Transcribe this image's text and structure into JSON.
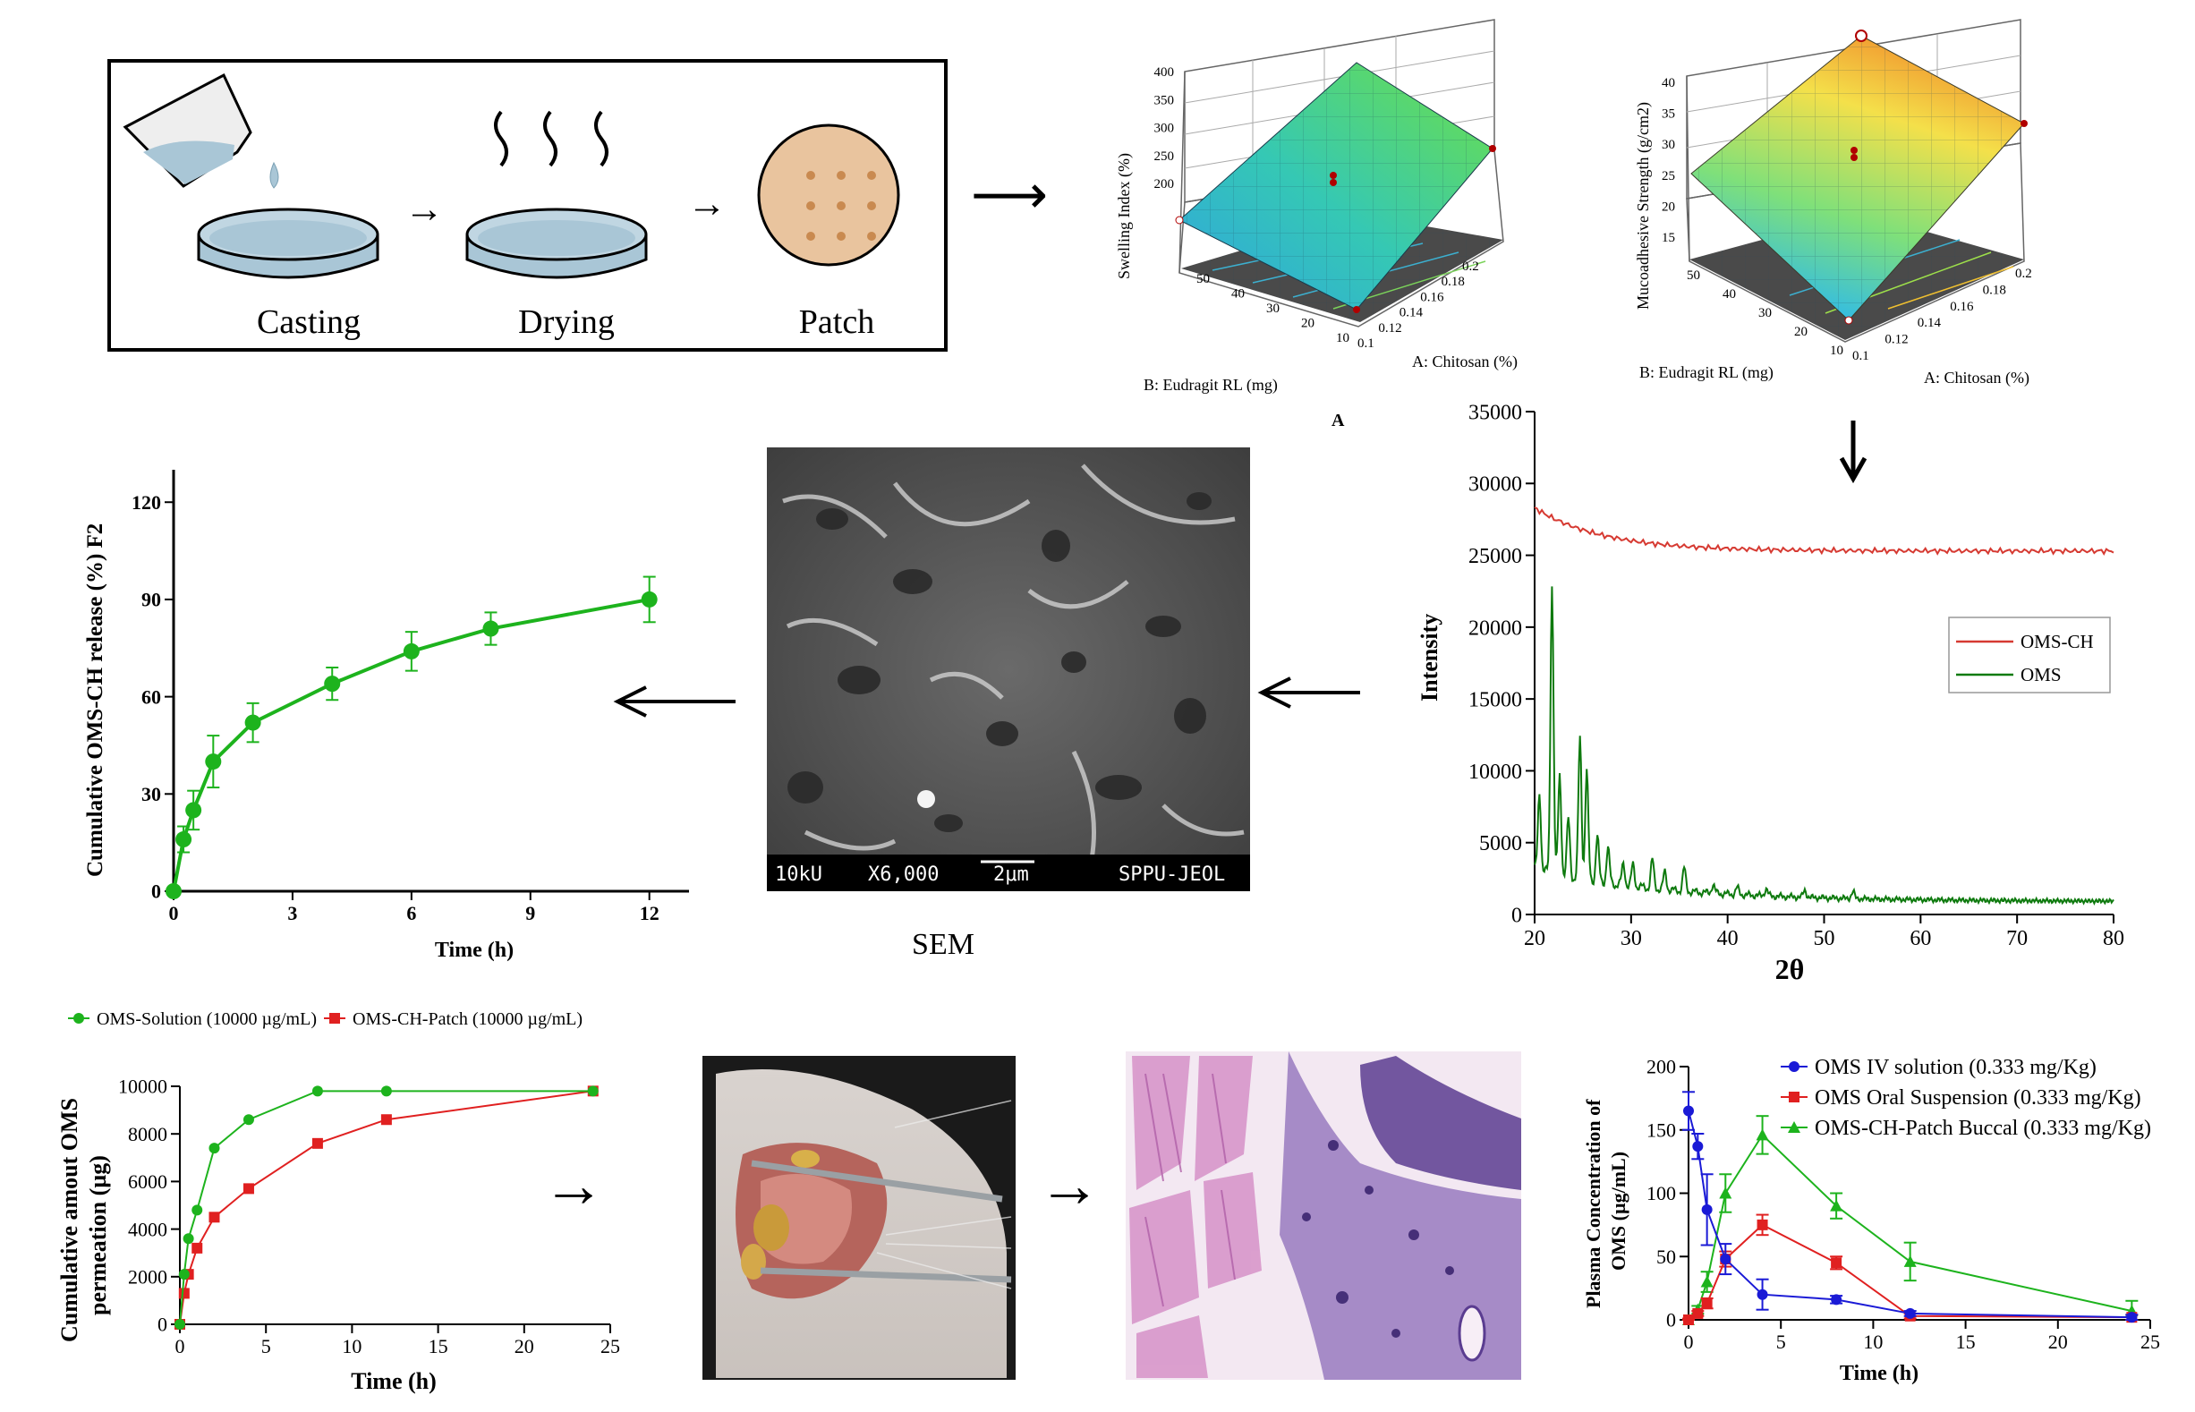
{
  "process": {
    "steps": [
      "Casting",
      "Drying",
      "Patch"
    ]
  },
  "surface_swelling": {
    "zlabel": "Swelling Index (%)",
    "zticks": [
      "400",
      "350",
      "300",
      "250",
      "200"
    ],
    "xlabel": "A: Chitosan (%)",
    "xticks": [
      "0.1",
      "0.12",
      "0.14",
      "0.16",
      "0.18",
      "0.2"
    ],
    "ylabel": "B: Eudragit RL (mg)",
    "yticks": [
      "10",
      "20",
      "30",
      "40",
      "50"
    ],
    "panel_letter": "A"
  },
  "surface_mucoadhesive": {
    "zlabel": "Mucoadhesive Strength (g/cm2)",
    "zticks": [
      "40",
      "35",
      "30",
      "25",
      "20",
      "15"
    ],
    "xlabel": "A: Chitosan (%)",
    "xticks": [
      "0.1",
      "0.12",
      "0.14",
      "0.16",
      "0.18",
      "0.2"
    ],
    "ylabel": "B: Eudragit RL (mg)",
    "yticks": [
      "10",
      "20",
      "30",
      "40",
      "50"
    ]
  },
  "sem": {
    "caption": "SEM",
    "bar_texts": [
      "10kU",
      "X6,000",
      "2μm",
      "SPPU-JEOL"
    ]
  },
  "colors": {
    "green": "#1db31d",
    "red": "#e02020",
    "blue": "#1a1ad6",
    "dkgreen": "#0e7a0e",
    "xred": "#d63a32"
  },
  "chart_data": [
    {
      "id": "release",
      "type": "line",
      "title": "",
      "xlabel": "Time (h)",
      "ylabel": "Cumulative OMS-CH release (%) F2",
      "xlim": [
        0,
        13
      ],
      "ylim": [
        0,
        130
      ],
      "xticks": [
        0,
        3,
        6,
        9,
        12
      ],
      "yticks": [
        0,
        30,
        60,
        90,
        120
      ],
      "series": [
        {
          "name": "OMS-CH release",
          "x": [
            0,
            0.25,
            0.5,
            1,
            2,
            4,
            6,
            8,
            12
          ],
          "values": [
            0,
            16,
            25,
            40,
            52,
            64,
            74,
            81,
            90
          ],
          "err": [
            1,
            4,
            6,
            8,
            6,
            5,
            6,
            5,
            7
          ]
        }
      ]
    },
    {
      "id": "xrd",
      "type": "line",
      "xlabel": "2θ",
      "ylabel": "Intensity",
      "xlim": [
        20,
        80
      ],
      "ylim": [
        0,
        35000
      ],
      "xticks": [
        20,
        30,
        40,
        50,
        60,
        70,
        80
      ],
      "yticks": [
        0,
        5000,
        10000,
        15000,
        20000,
        25000,
        30000,
        35000
      ],
      "legend": "right",
      "series": [
        {
          "name": "OMS-CH"
        },
        {
          "name": "OMS"
        }
      ]
    },
    {
      "id": "permeation",
      "type": "line",
      "xlabel": "Time (h)",
      "ylabel": "Cumulative amout OMS permeation (µg)",
      "xlim": [
        0,
        25
      ],
      "ylim": [
        0,
        10000
      ],
      "xticks": [
        0,
        5,
        10,
        15,
        20,
        25
      ],
      "yticks": [
        0,
        2000,
        4000,
        6000,
        8000,
        10000
      ],
      "legend": "top",
      "series": [
        {
          "name": "OMS-Solution (10000 µg/mL)",
          "x": [
            0,
            0.25,
            0.5,
            1,
            2,
            4,
            8,
            12,
            24
          ],
          "values": [
            0,
            2100,
            3600,
            4800,
            7400,
            8600,
            9800,
            9800,
            9800
          ]
        },
        {
          "name": "OMS-CH-Patch (10000 µg/mL)",
          "x": [
            0,
            0.25,
            0.5,
            1,
            2,
            4,
            8,
            12,
            24
          ],
          "values": [
            0,
            1300,
            2100,
            3200,
            4500,
            5700,
            7600,
            8600,
            9800
          ]
        }
      ]
    },
    {
      "id": "pk",
      "type": "line",
      "xlabel": "Time (h)",
      "ylabel": "Plasma Concentration of OMS (µg/mL)",
      "xlim": [
        0,
        25
      ],
      "ylim": [
        0,
        200
      ],
      "xticks": [
        0,
        5,
        10,
        15,
        20,
        25
      ],
      "yticks": [
        0,
        50,
        100,
        150,
        200
      ],
      "legend": "top-right",
      "series": [
        {
          "name": "OMS IV solution (0.333 mg/Kg)",
          "x": [
            0,
            0.5,
            1,
            2,
            4,
            8,
            12,
            24
          ],
          "values": [
            165,
            137,
            87,
            48,
            20,
            16,
            5,
            2
          ],
          "err": [
            15,
            10,
            28,
            12,
            12,
            3,
            2,
            2
          ]
        },
        {
          "name": "OMS Oral Suspension (0.333 mg/Kg)",
          "x": [
            0,
            0.5,
            1,
            2,
            4,
            8,
            12,
            24
          ],
          "values": [
            0,
            5,
            13,
            48,
            75,
            45,
            3,
            2
          ],
          "err": [
            1,
            2,
            4,
            6,
            8,
            5,
            2,
            2
          ]
        },
        {
          "name": "OMS-CH-Patch Buccal (0.333 mg/Kg)",
          "x": [
            0,
            0.5,
            1,
            2,
            4,
            8,
            12,
            24
          ],
          "values": [
            0,
            8,
            30,
            100,
            146,
            90,
            46,
            7
          ],
          "err": [
            1,
            3,
            8,
            15,
            15,
            10,
            15,
            8
          ]
        }
      ]
    }
  ]
}
